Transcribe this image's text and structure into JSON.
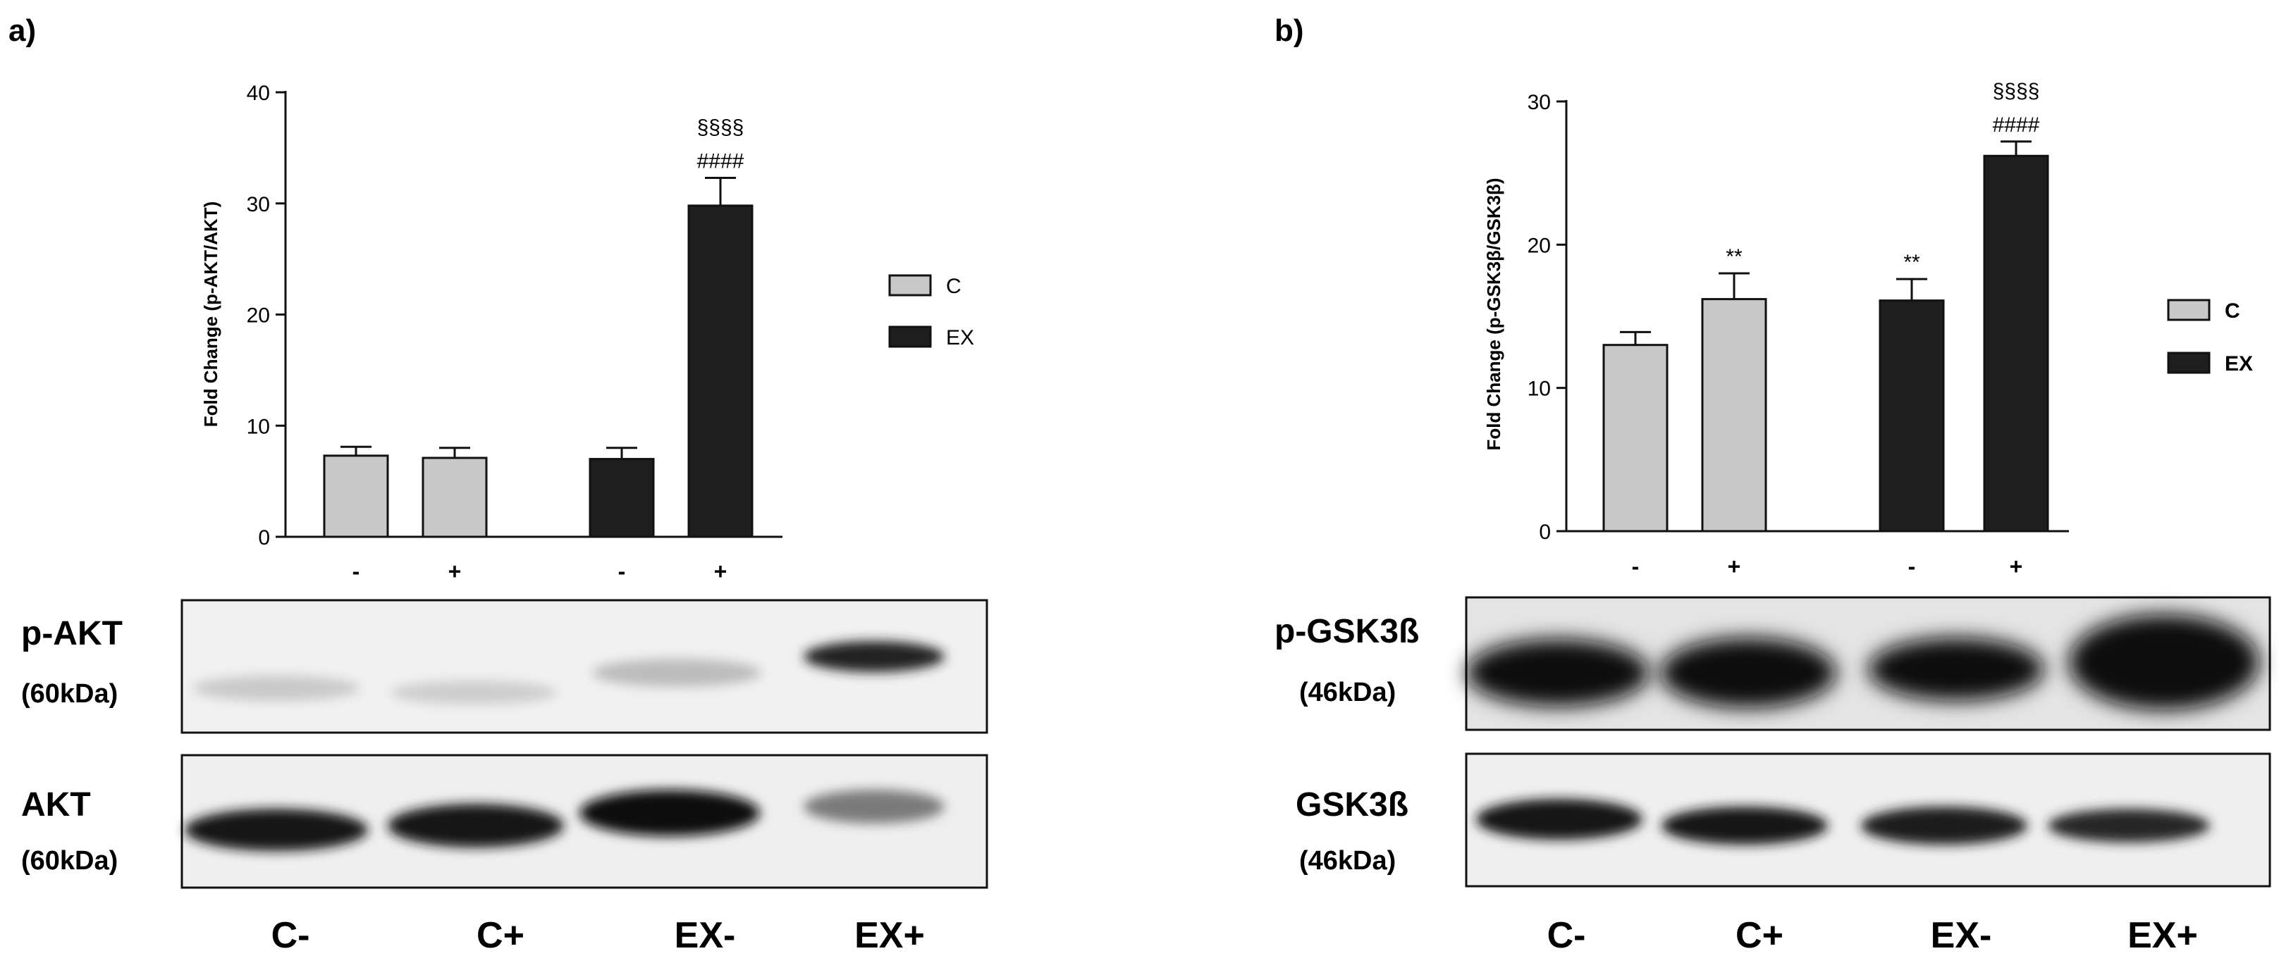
{
  "panels": [
    {
      "letter": "a)",
      "chart_data": {
        "type": "bar",
        "ylabel": "Fold Change (p-AKT/AKT)",
        "ylim": [
          0,
          40
        ],
        "yticks": [
          0,
          10,
          20,
          30,
          40
        ],
        "groups": [
          "C",
          "EX"
        ],
        "x_signs": [
          "-",
          "+",
          "-",
          "+"
        ],
        "bars": [
          {
            "group": "C",
            "sign": "-",
            "value": 7.3,
            "error": 0.8,
            "annotations": []
          },
          {
            "group": "C",
            "sign": "+",
            "value": 7.1,
            "error": 0.9,
            "annotations": []
          },
          {
            "group": "EX",
            "sign": "-",
            "value": 7.0,
            "error": 1.0,
            "annotations": []
          },
          {
            "group": "EX",
            "sign": "+",
            "value": 29.8,
            "error": 2.5,
            "annotations": [
              "####",
              "§§§§"
            ]
          }
        ],
        "legend": [
          {
            "name": "C",
            "color": "#c8c8c8"
          },
          {
            "name": "EX",
            "color": "#1e1e1e"
          }
        ],
        "legend_placement": "right"
      },
      "blots": [
        {
          "name": "p-AKT",
          "mass": "(60kDa)"
        },
        {
          "name": "AKT",
          "mass": "(60kDa)"
        }
      ],
      "lanes": [
        "C-",
        "C+",
        "EX-",
        "EX+"
      ]
    },
    {
      "letter": "b)",
      "chart_data": {
        "type": "bar",
        "ylabel": "Fold Change (p-GSK3β/GSK3β)",
        "ylim": [
          0,
          30
        ],
        "yticks": [
          0,
          10,
          20,
          30
        ],
        "groups": [
          "C",
          "EX"
        ],
        "x_signs": [
          "-",
          "+",
          "-",
          "+"
        ],
        "bars": [
          {
            "group": "C",
            "sign": "-",
            "value": 13.0,
            "error": 0.9,
            "annotations": []
          },
          {
            "group": "C",
            "sign": "+",
            "value": 16.2,
            "error": 1.8,
            "annotations": [
              "**"
            ]
          },
          {
            "group": "EX",
            "sign": "-",
            "value": 16.1,
            "error": 1.5,
            "annotations": [
              "**"
            ]
          },
          {
            "group": "EX",
            "sign": "+",
            "value": 26.2,
            "error": 1.0,
            "annotations": [
              "####",
              "§§§§"
            ]
          }
        ],
        "legend": [
          {
            "name": "C",
            "color": "#c8c8c8"
          },
          {
            "name": "EX",
            "color": "#1e1e1e"
          }
        ],
        "legend_placement": "right"
      },
      "blots": [
        {
          "name": "p-GSK3ß",
          "mass": "(46kDa)"
        },
        {
          "name": "GSK3ß",
          "mass": "(46kDa)"
        }
      ],
      "lanes": [
        "C-",
        "C+",
        "EX-",
        "EX+"
      ]
    }
  ]
}
